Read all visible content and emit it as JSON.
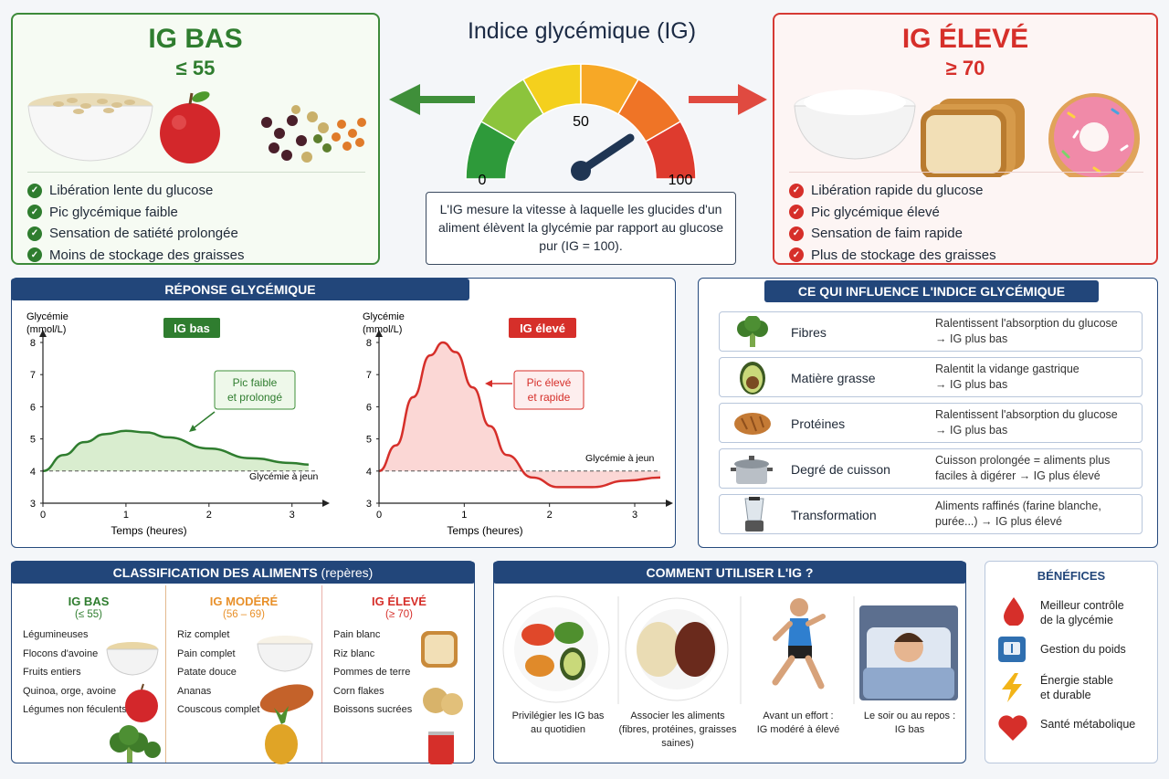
{
  "title": "Indice glycémique (IG)",
  "gauge": {
    "min": "0",
    "mid": "50",
    "max": "100"
  },
  "definition": "L'IG mesure la vitesse à laquelle les glucides d'un aliment élèvent la glycémie par rapport au glucose pur (IG = 100).",
  "low": {
    "title": "IG BAS",
    "threshold": "≤ 55",
    "points": [
      "Libération lente du glucose",
      "Pic glycémique faible",
      "Sensation de satiété prolongée",
      "Moins de stockage des graisses"
    ]
  },
  "high": {
    "title": "IG ÉLEVÉ",
    "threshold": "≥ 70",
    "points": [
      "Libération rapide du glucose",
      "Pic glycémique élevé",
      "Sensation de faim rapide",
      "Plus de stockage des graisses"
    ]
  },
  "response": {
    "banner": "RÉPONSE GLYCÉMIQUE",
    "ylabel_1": "Glycémie",
    "ylabel_2": "(mmol/L)",
    "xlabel": "Temps (heures)",
    "fasting": "Glycémie à jeun",
    "low_badge": "IG bas",
    "low_note_1": "Pic faible",
    "low_note_2": "et prolongé",
    "high_badge": "IG élevé",
    "high_note_1": "Pic élevé",
    "high_note_2": "et rapide"
  },
  "chart_data": [
    {
      "type": "area",
      "series_label": "IG bas",
      "x": [
        0,
        0.25,
        0.5,
        0.75,
        1.0,
        1.25,
        1.5,
        2.0,
        2.5,
        3.0,
        3.2
      ],
      "y": [
        4.0,
        4.5,
        4.9,
        5.15,
        5.25,
        5.2,
        5.05,
        4.7,
        4.4,
        4.25,
        4.2
      ],
      "baseline": 4,
      "xlim": [
        0,
        3.3
      ],
      "ylim": [
        3,
        8
      ],
      "xticks": [
        "0",
        "1",
        "2",
        "3"
      ],
      "yticks": [
        "3",
        "4",
        "5",
        "6",
        "7",
        "8"
      ]
    },
    {
      "type": "area",
      "series_label": "IG élevé",
      "x": [
        0,
        0.2,
        0.4,
        0.6,
        0.75,
        0.9,
        1.1,
        1.3,
        1.5,
        1.8,
        2.1,
        2.5,
        2.9,
        3.3
      ],
      "y": [
        4.0,
        4.8,
        6.3,
        7.6,
        8.0,
        7.7,
        6.6,
        5.4,
        4.5,
        3.8,
        3.5,
        3.5,
        3.7,
        3.8
      ],
      "baseline": 4,
      "xlim": [
        0,
        3.3
      ],
      "ylim": [
        3,
        8
      ],
      "xticks": [
        "0",
        "1",
        "2",
        "3"
      ],
      "yticks": [
        "3",
        "4",
        "5",
        "6",
        "7",
        "8"
      ]
    }
  ],
  "influence": {
    "banner": "CE QUI INFLUENCE L'INDICE GLYCÉMIQUE",
    "rows": [
      {
        "name": "Fibres",
        "line1": "Ralentissent l'absorption du glucose",
        "line2": "→ IG plus bas"
      },
      {
        "name": "Matière grasse",
        "line1": "Ralentit la vidange gastrique",
        "line2": "→ IG plus bas"
      },
      {
        "name": "Protéines",
        "line1": "Ralentissent l'absorption du glucose",
        "line2": "→ IG plus bas"
      },
      {
        "name": "Degré de cuisson",
        "line1": "Cuisson prolongée = aliments plus",
        "line2": "faciles à digérer → IG plus élevé"
      },
      {
        "name": "Transformation",
        "line1": "Aliments raffinés (farine blanche,",
        "line2": "purée...) → IG plus élevé"
      }
    ]
  },
  "classification": {
    "banner": "CLASSIFICATION DES ALIMENTS",
    "banner_note": "(repères)",
    "cols": [
      {
        "title": "IG BAS",
        "range": "(≤ 55)",
        "items": [
          "Légumineuses",
          "Flocons d'avoine",
          "Fruits entiers",
          "Quinoa, orge, avoine",
          "Légumes non féculents"
        ]
      },
      {
        "title": "IG MODÉRÉ",
        "range": "(56 – 69)",
        "items": [
          "Riz complet",
          "Pain complet",
          "Patate douce",
          "Ananas",
          "Couscous complet"
        ]
      },
      {
        "title": "IG ÉLEVÉ",
        "range": "(≥ 70)",
        "items": [
          "Pain blanc",
          "Riz blanc",
          "Pommes de terre",
          "Corn flakes",
          "Boissons sucrées"
        ]
      }
    ]
  },
  "usage": {
    "banner": "COMMENT UTILISER L'IG ?",
    "items": [
      {
        "l1": "Privilégier les IG bas",
        "l2": "au quotidien",
        "l3": ""
      },
      {
        "l1": "Associer les aliments",
        "l2": "(fibres, protéines, graisses",
        "l3": "saines)"
      },
      {
        "l1": "Avant un effort :",
        "l2": "IG modéré à élevé",
        "l3": ""
      },
      {
        "l1": "Le soir ou au repos :",
        "l2": "IG bas",
        "l3": ""
      }
    ]
  },
  "benefits": {
    "title": "BÉNÉFICES",
    "items": [
      {
        "l1": "Meilleur contrôle",
        "l2": "de la glycémie",
        "icon": "blood-drop-icon"
      },
      {
        "l1": "Gestion du poids",
        "l2": "",
        "icon": "scale-icon"
      },
      {
        "l1": "Énergie stable",
        "l2": "et durable",
        "icon": "lightning-icon"
      },
      {
        "l1": "Santé métabolique",
        "l2": "",
        "icon": "heart-icon"
      }
    ]
  },
  "colors": {
    "low": "#2f7d2f",
    "high": "#d62f2a",
    "moderate": "#e8902a",
    "navy": "#22467a"
  }
}
